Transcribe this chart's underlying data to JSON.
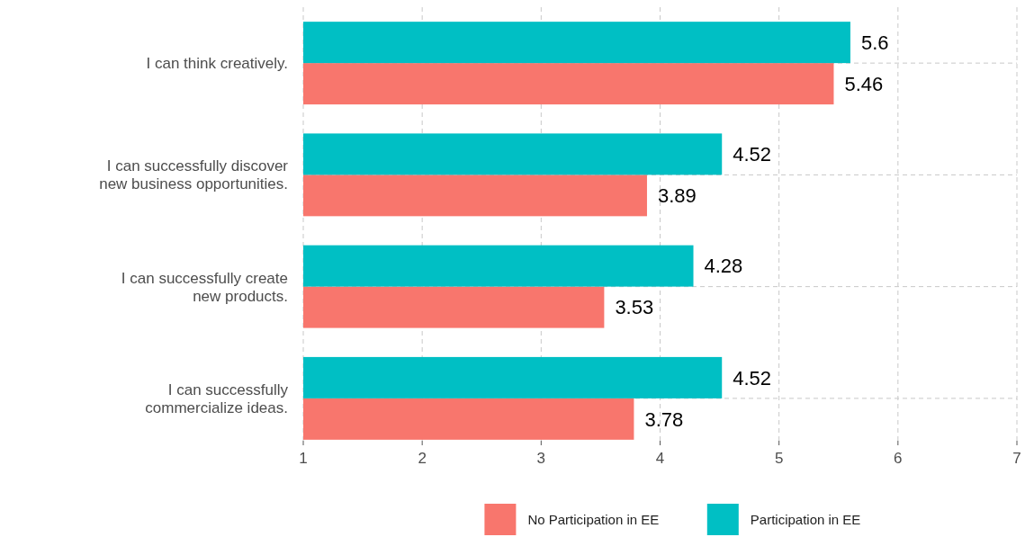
{
  "chart_data": {
    "type": "bar",
    "orientation": "horizontal",
    "categories": [
      "I can think creatively.",
      "I can successfully discover new business opportunities.",
      "I can successfully create new products.",
      "I can successfully commercialize ideas."
    ],
    "series": [
      {
        "name": "No Participation in EE",
        "color": "#f8766d",
        "values": [
          5.46,
          3.89,
          3.53,
          3.78
        ]
      },
      {
        "name": "Participation in EE",
        "color": "#00bfc4",
        "values": [
          5.6,
          4.52,
          4.28,
          4.52
        ]
      }
    ],
    "xlim": [
      1,
      7
    ],
    "xticks": [
      1,
      2,
      3,
      4,
      5,
      6,
      7
    ],
    "grid": true,
    "legend": "bottom",
    "data_labels": true
  }
}
